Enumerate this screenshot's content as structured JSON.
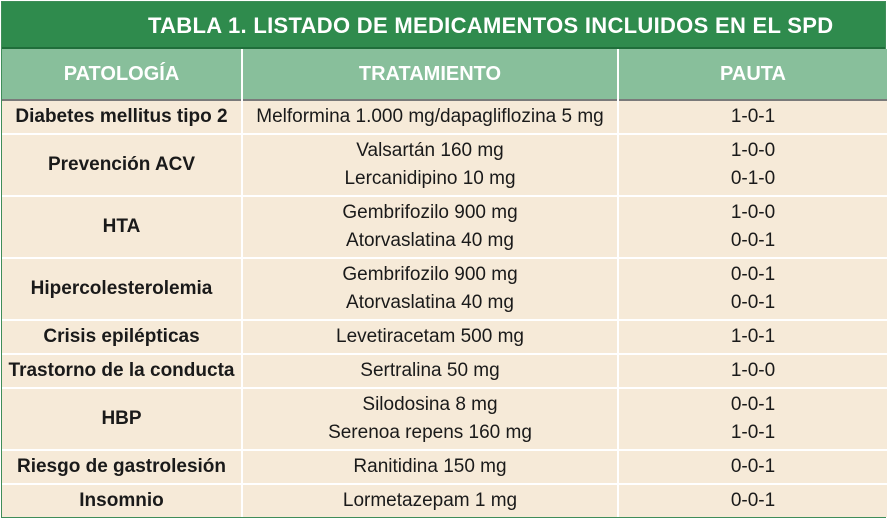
{
  "title": "TABLA 1. LISTADO DE MEDICAMENTOS INCLUIDOS EN EL SPD",
  "headers": [
    "PATOLOGÍA",
    "TRATAMIENTO",
    "PAUTA"
  ],
  "rows": [
    {
      "pathology": "Diabetes mellitus tipo 2",
      "treatments": [
        "Melformina 1.000 mg/dapagliflozina 5 mg"
      ],
      "schedules": [
        "1-0-1"
      ]
    },
    {
      "pathology": "Prevención ACV",
      "treatments": [
        "Valsartán 160 mg",
        "Lercanidipino 10 mg"
      ],
      "schedules": [
        "1-0-0",
        "0-1-0"
      ]
    },
    {
      "pathology": "HTA",
      "treatments": [
        "Gembrifozilo 900 mg",
        "Atorvaslatina 40 mg"
      ],
      "schedules": [
        "1-0-0",
        "0-0-1"
      ]
    },
    {
      "pathology": "Hipercolesterolemia",
      "treatments": [
        "Gembrifozilo 900 mg",
        "Atorvaslatina 40 mg"
      ],
      "schedules": [
        "0-0-1",
        "0-0-1"
      ]
    },
    {
      "pathology": "Crisis epilépticas",
      "treatments": [
        "Levetiracetam 500 mg"
      ],
      "schedules": [
        "1-0-1"
      ]
    },
    {
      "pathology": "Trastorno de la conducta",
      "treatments": [
        "Sertralina 50 mg"
      ],
      "schedules": [
        "1-0-0"
      ]
    },
    {
      "pathology": "HBP",
      "treatments": [
        "Silodosina 8 mg",
        "Serenoa repens 160 mg"
      ],
      "schedules": [
        "0-0-1",
        "1-0-1"
      ]
    },
    {
      "pathology": "Riesgo de gastrolesión",
      "treatments": [
        "Ranitidina 150 mg"
      ],
      "schedules": [
        "0-0-1"
      ]
    },
    {
      "pathology": "Insomnio",
      "treatments": [
        "Lormetazepam 1 mg"
      ],
      "schedules": [
        "0-0-1"
      ]
    }
  ],
  "colors": {
    "title_bg": "#2f8b4d",
    "header_bg": "#88bf9b",
    "body_bg": "#f6ead8"
  }
}
